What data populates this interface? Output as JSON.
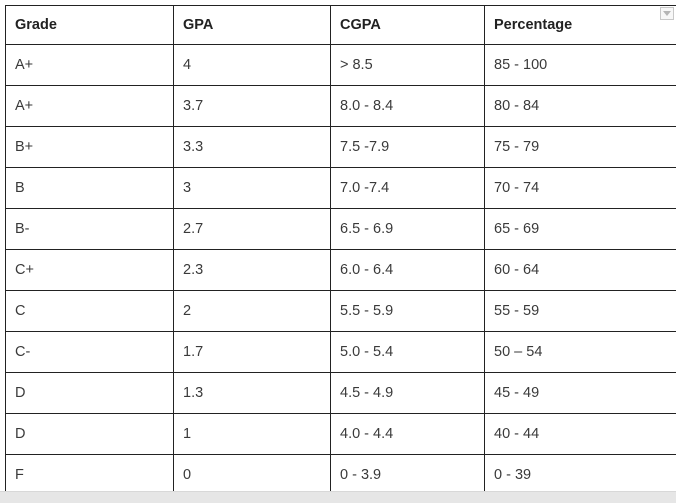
{
  "table": {
    "headers": [
      "Grade",
      "GPA",
      "CGPA",
      "Percentage"
    ],
    "rows": [
      [
        "A+",
        "4",
        "> 8.5",
        "85 - 100"
      ],
      [
        "A+",
        "3.7",
        "8.0 - 8.4",
        "80 - 84"
      ],
      [
        "B+",
        "3.3",
        "7.5 -7.9",
        "75 - 79"
      ],
      [
        "B",
        "3",
        "7.0 -7.4",
        "70 - 74"
      ],
      [
        "B-",
        "2.7",
        "6.5 - 6.9",
        "65 - 69"
      ],
      [
        "C+",
        "2.3",
        "6.0 - 6.4",
        "60 - 64"
      ],
      [
        "C",
        "2",
        "5.5 - 5.9",
        "55 - 59"
      ],
      [
        "C-",
        "1.7",
        "5.0 - 5.4",
        "50 – 54"
      ],
      [
        "D",
        "1.3",
        "4.5 - 4.9",
        "45 - 49"
      ],
      [
        "D",
        "1",
        "4.0 - 4.4",
        "40 - 44"
      ],
      [
        "F",
        "0",
        "0 - 3.9",
        "0 - 39"
      ]
    ]
  },
  "icons": {
    "dropdown": "chevron-down-icon"
  }
}
